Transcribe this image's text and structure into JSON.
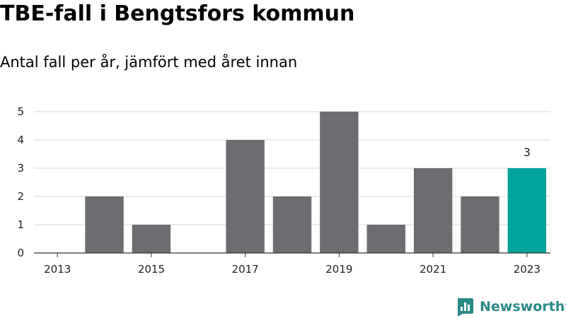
{
  "title": "TBE-fall i Bengtsfors kommun",
  "subtitle": "Antal fall per år, jämfört med året innan",
  "brand": "Newsworthy",
  "colors": {
    "bar": "#6d6c71",
    "highlight": "#00a398",
    "grid": "#d9d9d9",
    "axis": "#333333",
    "brand": "#2a8a86"
  },
  "chart_data": {
    "type": "bar",
    "categories": [
      "2013",
      "2014",
      "2015",
      "2016",
      "2017",
      "2018",
      "2019",
      "2020",
      "2021",
      "2022",
      "2023"
    ],
    "values": [
      0,
      2,
      1,
      0,
      4,
      2,
      5,
      1,
      3,
      2,
      3
    ],
    "highlight_category": "2023",
    "data_labels": [
      {
        "category": "2023",
        "text": "3"
      }
    ],
    "x_tick_labels": [
      "2013",
      "2015",
      "2017",
      "2019",
      "2021",
      "2023"
    ],
    "y_ticks": [
      0,
      1,
      2,
      3,
      4,
      5
    ],
    "ylim": [
      0,
      5
    ],
    "xlabel": "",
    "ylabel": "",
    "grid": true
  }
}
